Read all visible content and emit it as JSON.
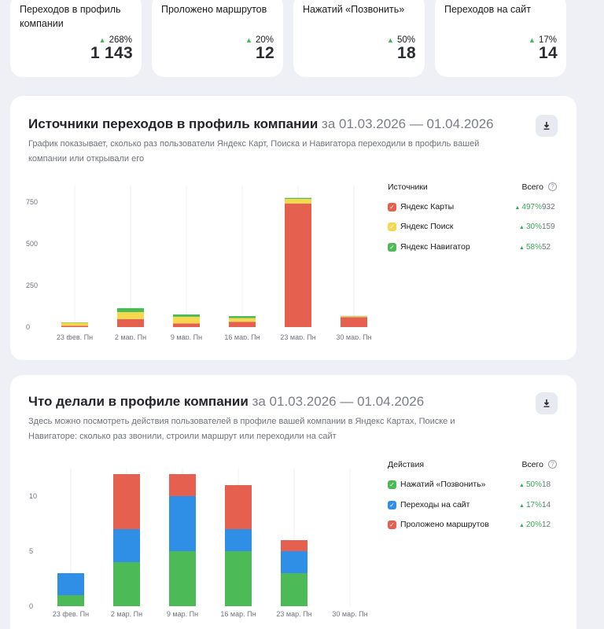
{
  "kpis": [
    {
      "label": "Переходов в профиль компании",
      "delta": "268%",
      "value": "1 143"
    },
    {
      "label": "Проложено маршрутов",
      "delta": "20%",
      "value": "12"
    },
    {
      "label": "Нажатий «Позвонить»",
      "delta": "50%",
      "value": "18"
    },
    {
      "label": "Переходов на сайт",
      "delta": "17%",
      "value": "14"
    }
  ],
  "sources": {
    "title": "Источники переходов в профиль компании",
    "period": "за 01.03.2026 — 01.04.2026",
    "description": "График показывает, сколько раз пользователи Яндекс Карт, Поиска и Навигатора переходили в профиль вашей компании или открывали его",
    "legend_header": "Источники",
    "total_header": "Всего",
    "items": [
      {
        "name": "Яндекс Карты",
        "color": "#e5604f",
        "pct": "497%",
        "total": "932"
      },
      {
        "name": "Яндекс Поиск",
        "color": "#f5d84e",
        "pct": "30%",
        "total": "159"
      },
      {
        "name": "Яндекс Навигатор",
        "color": "#4cbb57",
        "pct": "58%",
        "total": "52"
      }
    ]
  },
  "actions": {
    "title": "Что делали в профиле компании",
    "period": "за 01.03.2026 — 01.04.2026",
    "description": "Здесь можно посмотреть действия пользователей в профиле вашей компании в Яндекс Картах, Поиске и Навигаторе: сколько раз звонили, строили маршрут или переходили на сайт",
    "legend_header": "Действия",
    "total_header": "Всего",
    "items": [
      {
        "name": "Нажатий «Позвонить»",
        "color": "#4cbb57",
        "pct": "50%",
        "total": "18"
      },
      {
        "name": "Переходы на сайт",
        "color": "#2f8ee5",
        "pct": "17%",
        "total": "14"
      },
      {
        "name": "Проложено маршрутов",
        "color": "#e5604f",
        "pct": "20%",
        "total": "12"
      }
    ]
  },
  "chart_data": [
    {
      "type": "bar",
      "stacked": true,
      "categories": [
        "23 фев. Пн",
        "2 мар. Пн",
        "9 мар. Пн",
        "16 мар. Пн",
        "23 мар. Пн",
        "30 мар. Пн"
      ],
      "yticks": [
        0,
        250,
        500,
        750
      ],
      "ylim": [
        0,
        850
      ],
      "grid": "vertical",
      "series": [
        {
          "name": "Яндекс Карты",
          "color": "#e5604f",
          "values": [
            8,
            48,
            22,
            32,
            742,
            60
          ]
        },
        {
          "name": "Яндекс Поиск",
          "color": "#f5d84e",
          "values": [
            18,
            42,
            40,
            22,
            28,
            5
          ]
        },
        {
          "name": "Яндекс Навигатор",
          "color": "#4cbb57",
          "values": [
            2,
            24,
            14,
            12,
            6,
            2
          ]
        }
      ]
    },
    {
      "type": "bar",
      "stacked": true,
      "categories": [
        "23 фев. Пн",
        "2 мар. Пн",
        "9 мар. Пн",
        "16 мар. Пн",
        "23 мар. Пн",
        "30 мар. Пн"
      ],
      "yticks": [
        0,
        5,
        10
      ],
      "ylim": [
        0,
        12.5
      ],
      "grid": "vertical",
      "series": [
        {
          "name": "Нажатий «Позвонить»",
          "color": "#4cbb57",
          "values": [
            1,
            4,
            5,
            5,
            3,
            0
          ]
        },
        {
          "name": "Переходы на сайт",
          "color": "#2f8ee5",
          "values": [
            2,
            3,
            5,
            2,
            2,
            0
          ]
        },
        {
          "name": "Проложено маршрутов",
          "color": "#e5604f",
          "values": [
            0,
            5,
            2,
            4,
            1,
            0
          ]
        }
      ]
    }
  ]
}
